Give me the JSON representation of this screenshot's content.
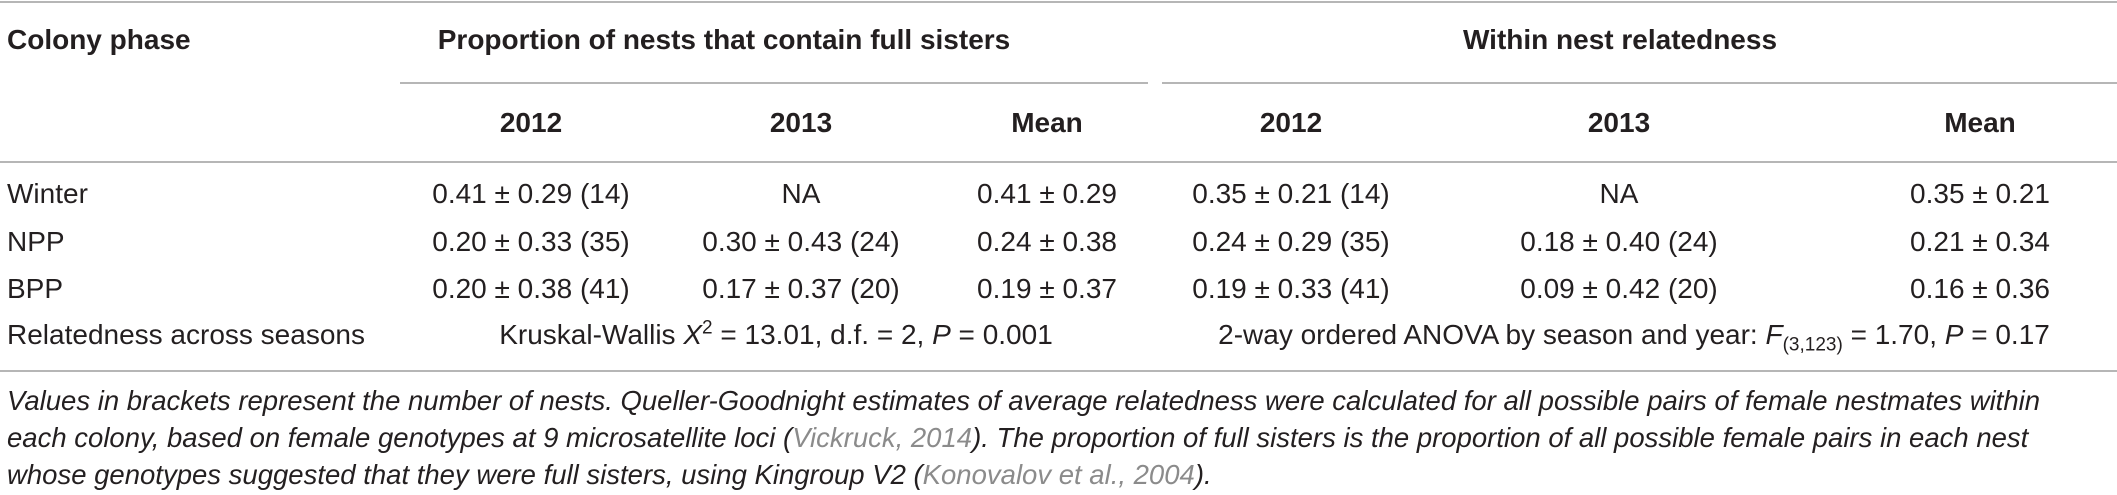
{
  "header": {
    "col_phase": "Colony phase",
    "group1": "Proportion of nests that contain full sisters",
    "group2": "Within nest relatedness",
    "years": [
      "2012",
      "2013",
      "Mean",
      "2012",
      "2013",
      "Mean"
    ]
  },
  "rows": [
    {
      "label": "Winter",
      "cells": [
        "0.41 ± 0.29 (14)",
        "NA",
        "0.41 ± 0.29",
        "0.35 ± 0.21 (14)",
        "NA",
        "0.35 ± 0.21"
      ]
    },
    {
      "label": "NPP",
      "cells": [
        "0.20 ± 0.33 (35)",
        "0.30 ± 0.43 (24)",
        "0.24 ± 0.38",
        "0.24 ± 0.29 (35)",
        "0.18 ± 0.40 (24)",
        "0.21 ± 0.34"
      ]
    },
    {
      "label": "BPP",
      "cells": [
        "0.20 ± 0.38 (41)",
        "0.17 ± 0.37 (20)",
        "0.19 ± 0.37",
        "0.19 ± 0.33 (41)",
        "0.09 ± 0.42 (20)",
        "0.16 ± 0.36"
      ]
    }
  ],
  "stats_row": {
    "label": "Relatedness across seasons",
    "kw_prefix": "Kruskal-Wallis",
    "kw_x": "X",
    "kw_sup": "2",
    "kw_rest": " = 13.01, d.f. = 2,",
    "kw_p": "P",
    "kw_pval": " = 0.001",
    "anova_prefix": "2-way ordered ANOVA by season and year:",
    "anova_f": "F",
    "anova_sub": "(3,123)",
    "anova_rest": " = 1.70,",
    "anova_p": "P",
    "anova_pval": " = 0.17"
  },
  "footnote": {
    "part1": "Values in brackets represent the number of nests. Queller-Goodnight estimates of average relatedness were calculated for all possible pairs of female nestmates within each colony, based on female genotypes at 9 microsatellite loci (",
    "cite1": "Vickruck, 2014",
    "part2": "). The proportion of full sisters is the proportion of all possible female pairs in each nest whose genotypes suggested that they were full sisters, using Kingroup V2 (",
    "cite2": "Konovalov et al., 2004",
    "part3": ")."
  }
}
